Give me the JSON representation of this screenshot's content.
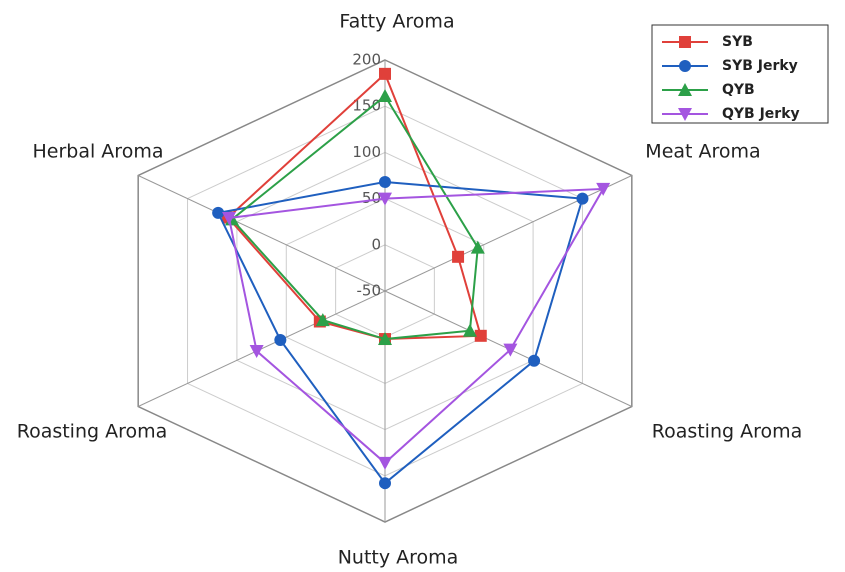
{
  "chart_data": {
    "type": "radar",
    "categories": [
      "Fatty Aroma",
      "Meat Aroma",
      "Roasting Aroma",
      "Nutty Aroma",
      "Roasting Aroma",
      "Herbal Aroma"
    ],
    "rlim": [
      -50,
      200
    ],
    "rticks": [
      -50,
      0,
      50,
      100,
      150,
      200
    ],
    "grid": true,
    "legend": "upper right",
    "series": [
      {
        "name": "SYB",
        "color": "#e0403a",
        "marker": "square",
        "values": [
          185,
          24,
          47,
          2,
          16,
          109
        ]
      },
      {
        "name": "SYB Jerky",
        "color": "#1f5fbf",
        "marker": "circle",
        "values": [
          68,
          150,
          101,
          158,
          56,
          119
        ]
      },
      {
        "name": "QYB",
        "color": "#2ca048",
        "marker": "triangle-up",
        "values": [
          161,
          44,
          36,
          2,
          13,
          105
        ]
      },
      {
        "name": "QYB Jerky",
        "color": "#a455e0",
        "marker": "triangle-down",
        "values": [
          50,
          171,
          77,
          136,
          80,
          108
        ]
      }
    ]
  }
}
